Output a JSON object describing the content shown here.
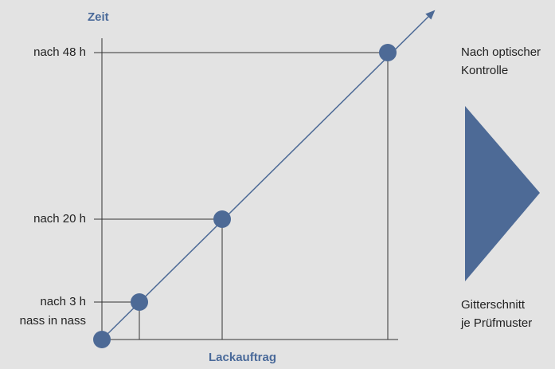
{
  "diagram": {
    "y_axis_title": "Zeit",
    "x_axis_title": "Lackauftrag",
    "time_levels": [
      {
        "id": "level-48h",
        "label": "nach 48 h"
      },
      {
        "id": "level-20h",
        "label": "nach 20 h"
      },
      {
        "id": "level-3h",
        "label": "nach 3 h"
      },
      {
        "id": "level-wet",
        "label": "nass in nass"
      }
    ],
    "right_panel": {
      "top_note_line1": "Nach optischer",
      "top_note_line2": "Kontrolle",
      "bottom_note_line1": "Gitterschnitt",
      "bottom_note_line2": "je Prüfmuster"
    },
    "colors": {
      "background": "#e3e3e3",
      "accent": "#4d6a96",
      "line": "#4d6a96",
      "guide": "#333333",
      "text": "#222222",
      "axis_title": "#4a6a9a"
    }
  }
}
